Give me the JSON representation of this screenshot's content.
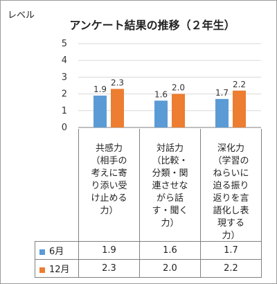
{
  "chart_data": {
    "type": "bar",
    "title": "アンケート結果の推移（２年生）",
    "ylabel": "レベル",
    "ylim": [
      0,
      5
    ],
    "yticks": [
      "0",
      "1",
      "2",
      "3",
      "4",
      "5"
    ],
    "categories": [
      "共感力\n（相手の\n考えに寄\nり添い受\nけ止める\n力）",
      "対話力\n（比較・\n分類・関\n連させな\nがら話\nす・聞く\n力）",
      "深化力\n（学習の\nねらいに\n迫る振り\n返りを言\n語化し表\n現する\n力）"
    ],
    "series": [
      {
        "name": "6月",
        "values": [
          1.9,
          1.6,
          1.7
        ],
        "labels": [
          "1.9",
          "1.6",
          "1.7"
        ],
        "color": "#5b9bd5"
      },
      {
        "name": "12月",
        "values": [
          2.3,
          2.0,
          2.2
        ],
        "labels": [
          "2.3",
          "2.0",
          "2.2"
        ],
        "color": "#ed7d31"
      }
    ],
    "gridlines": true,
    "legend": "data-table-below"
  }
}
